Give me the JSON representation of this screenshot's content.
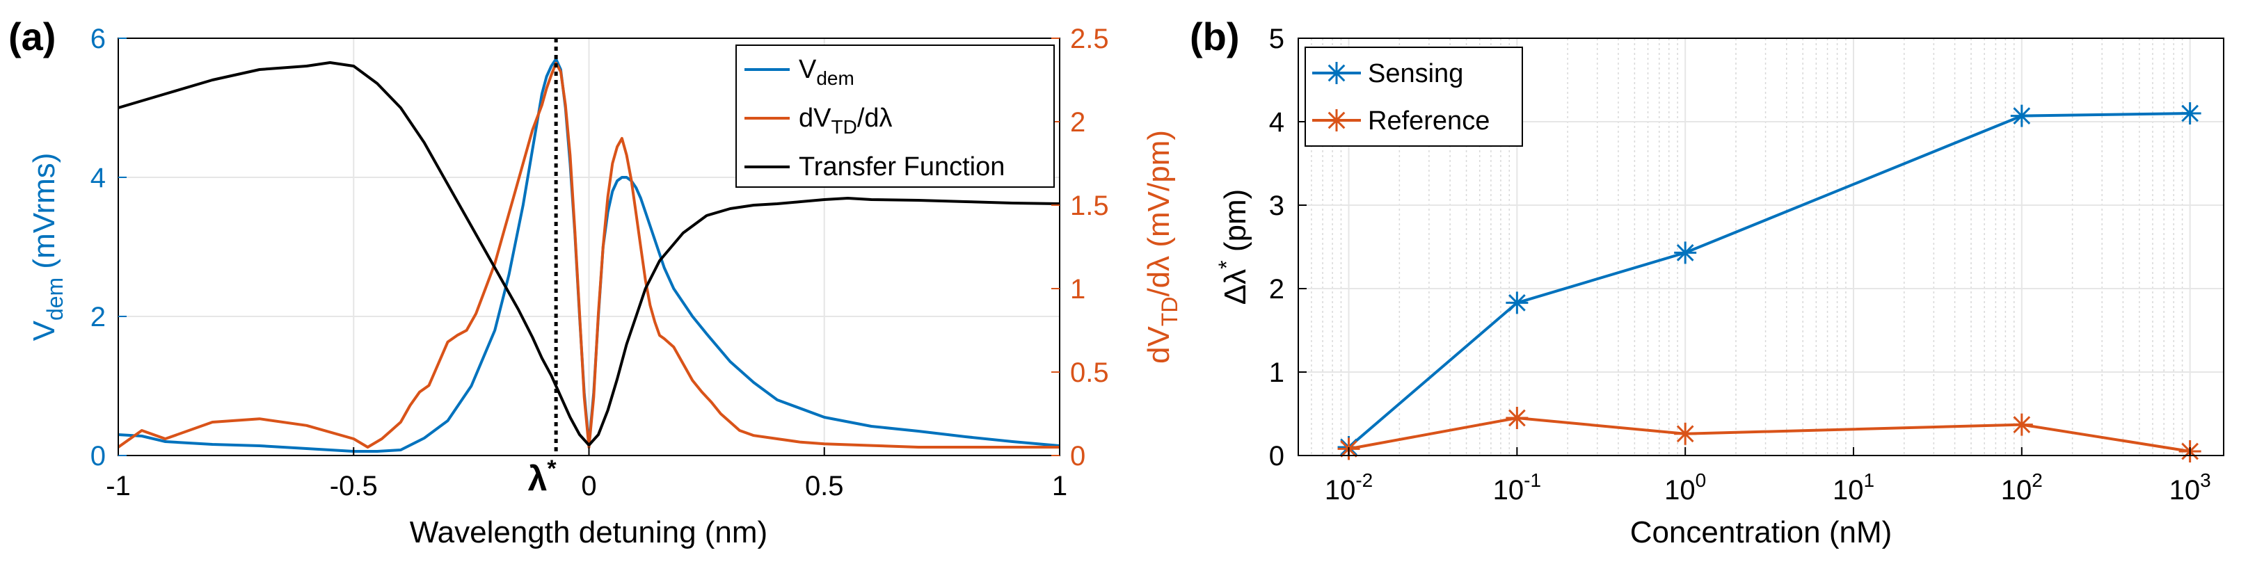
{
  "colors": {
    "blue": "#0072BD",
    "orange": "#D95319",
    "black": "#000000",
    "grid": "#E6E6E6",
    "minor_grid": "#D8D8D8"
  },
  "chart_data": [
    {
      "panel_label": "(a)",
      "type": "line",
      "xlabel": "Wavelength detuning (nm)",
      "xlim": [
        -1,
        1
      ],
      "x_ticks": [
        -1,
        -0.5,
        0,
        0.5,
        1
      ],
      "x_tick_labels": [
        "-1",
        "-0.5",
        "0",
        "0.5",
        "1"
      ],
      "ylabel_left": {
        "main": "V",
        "sub": "dem",
        "rest": " (mVrms)"
      },
      "ylim_left": [
        0,
        6
      ],
      "y_left_ticks": [
        0,
        2,
        4,
        6
      ],
      "ylabel_right": {
        "p1": "dV",
        "sub": "TD",
        "p2": "/dλ (mV/pm)"
      },
      "ylim_right": [
        0,
        2.5
      ],
      "y_right_ticks": [
        0,
        0.5,
        1,
        1.5,
        2,
        2.5
      ],
      "y_right_tick_labels": [
        "0",
        "0.5",
        "1",
        "1.5",
        "2",
        "2.5"
      ],
      "marker": {
        "x": -0.07,
        "label": "λ",
        "sup": "*"
      },
      "legend_position": "top-right",
      "legend": [
        {
          "main": "V",
          "sub": "dem",
          "rest": ""
        },
        {
          "main": "dV",
          "sub": "TD",
          "rest": "/dλ"
        },
        {
          "main": "Transfer Function",
          "sub": "",
          "rest": ""
        }
      ],
      "series": [
        {
          "name": "Vdem",
          "axis": "left",
          "color": "blue",
          "x": [
            -1,
            -0.95,
            -0.9,
            -0.8,
            -0.7,
            -0.6,
            -0.5,
            -0.45,
            -0.4,
            -0.35,
            -0.3,
            -0.25,
            -0.2,
            -0.17,
            -0.14,
            -0.12,
            -0.1,
            -0.09,
            -0.08,
            -0.07,
            -0.06,
            -0.05,
            -0.04,
            -0.03,
            -0.02,
            -0.01,
            0,
            0.01,
            0.02,
            0.03,
            0.04,
            0.05,
            0.06,
            0.07,
            0.08,
            0.09,
            0.1,
            0.11,
            0.12,
            0.14,
            0.16,
            0.18,
            0.2,
            0.22,
            0.25,
            0.3,
            0.35,
            0.4,
            0.5,
            0.6,
            0.7,
            0.8,
            0.9,
            1
          ],
          "values": [
            0.3,
            0.28,
            0.2,
            0.16,
            0.14,
            0.1,
            0.06,
            0.06,
            0.08,
            0.25,
            0.5,
            1.0,
            1.8,
            2.6,
            3.6,
            4.4,
            5.2,
            5.45,
            5.6,
            5.7,
            5.55,
            5.0,
            4.2,
            3.2,
            2.0,
            0.9,
            0.15,
            0.9,
            2.0,
            3.0,
            3.5,
            3.8,
            3.95,
            4.0,
            4.0,
            3.95,
            3.85,
            3.7,
            3.5,
            3.1,
            2.7,
            2.4,
            2.2,
            2.0,
            1.75,
            1.35,
            1.05,
            0.8,
            0.55,
            0.42,
            0.35,
            0.27,
            0.2,
            0.14
          ]
        },
        {
          "name": "dVTD/dλ",
          "axis": "right",
          "color": "orange",
          "x": [
            -1,
            -0.95,
            -0.9,
            -0.8,
            -0.7,
            -0.6,
            -0.5,
            -0.47,
            -0.44,
            -0.42,
            -0.4,
            -0.38,
            -0.36,
            -0.34,
            -0.32,
            -0.3,
            -0.28,
            -0.26,
            -0.24,
            -0.22,
            -0.2,
            -0.18,
            -0.16,
            -0.14,
            -0.12,
            -0.1,
            -0.09,
            -0.08,
            -0.07,
            -0.06,
            -0.05,
            -0.04,
            -0.03,
            -0.02,
            -0.01,
            0,
            0.01,
            0.02,
            0.03,
            0.04,
            0.05,
            0.06,
            0.07,
            0.08,
            0.09,
            0.1,
            0.11,
            0.12,
            0.13,
            0.14,
            0.15,
            0.16,
            0.18,
            0.2,
            0.22,
            0.24,
            0.26,
            0.28,
            0.3,
            0.32,
            0.35,
            0.4,
            0.45,
            0.5,
            0.6,
            0.7,
            0.8,
            0.9,
            1
          ],
          "values": [
            0.05,
            0.15,
            0.1,
            0.2,
            0.22,
            0.18,
            0.1,
            0.05,
            0.1,
            0.15,
            0.2,
            0.3,
            0.38,
            0.42,
            0.55,
            0.68,
            0.72,
            0.75,
            0.85,
            1.0,
            1.15,
            1.35,
            1.55,
            1.75,
            1.95,
            2.1,
            2.2,
            2.28,
            2.35,
            2.3,
            2.1,
            1.8,
            1.35,
            0.85,
            0.35,
            0.05,
            0.35,
            0.85,
            1.25,
            1.55,
            1.75,
            1.85,
            1.9,
            1.8,
            1.65,
            1.45,
            1.25,
            1.05,
            0.9,
            0.8,
            0.72,
            0.7,
            0.65,
            0.55,
            0.45,
            0.38,
            0.32,
            0.25,
            0.2,
            0.15,
            0.12,
            0.1,
            0.08,
            0.07,
            0.06,
            0.05,
            0.05,
            0.05,
            0.05
          ]
        },
        {
          "name": "Transfer Function",
          "axis": "left",
          "color": "black",
          "x": [
            -1,
            -0.9,
            -0.8,
            -0.7,
            -0.6,
            -0.55,
            -0.5,
            -0.45,
            -0.4,
            -0.35,
            -0.3,
            -0.25,
            -0.2,
            -0.15,
            -0.12,
            -0.1,
            -0.08,
            -0.06,
            -0.04,
            -0.02,
            0,
            0.02,
            0.04,
            0.06,
            0.08,
            0.1,
            0.12,
            0.15,
            0.2,
            0.25,
            0.3,
            0.35,
            0.4,
            0.45,
            0.5,
            0.55,
            0.6,
            0.7,
            0.8,
            0.9,
            1
          ],
          "values": [
            5.0,
            5.2,
            5.4,
            5.55,
            5.6,
            5.65,
            5.6,
            5.35,
            5.0,
            4.5,
            3.9,
            3.3,
            2.7,
            2.1,
            1.7,
            1.4,
            1.15,
            0.85,
            0.55,
            0.3,
            0.15,
            0.3,
            0.65,
            1.1,
            1.6,
            2.0,
            2.4,
            2.8,
            3.2,
            3.45,
            3.55,
            3.6,
            3.62,
            3.65,
            3.68,
            3.7,
            3.68,
            3.67,
            3.65,
            3.63,
            3.62
          ]
        }
      ]
    },
    {
      "panel_label": "(b)",
      "type": "line",
      "xlabel": "Concentration (nM)",
      "x_scale": "log",
      "xlim_exponent": [
        -2.3,
        3.2
      ],
      "x_ticks_exponent": [
        -2,
        -1,
        0,
        1,
        2,
        3
      ],
      "x_tick_base": "10",
      "x_tick_exponent_labels": [
        "-2",
        "-1",
        "0",
        "1",
        "2",
        "3"
      ],
      "ylabel": {
        "main": "Δλ",
        "sup": "*",
        "rest": " (pm)"
      },
      "ylim": [
        0,
        5
      ],
      "y_ticks": [
        0,
        1,
        2,
        3,
        4,
        5
      ],
      "legend_position": "top-left",
      "legend": [
        "Sensing",
        "Reference"
      ],
      "series": [
        {
          "name": "Sensing",
          "color": "blue",
          "x": [
            0.01,
            0.1,
            1,
            100,
            1000
          ],
          "values": [
            0.1,
            1.83,
            2.43,
            4.07,
            4.1
          ]
        },
        {
          "name": "Reference",
          "color": "orange",
          "x": [
            0.01,
            0.1,
            1,
            100,
            1000
          ],
          "values": [
            0.08,
            0.45,
            0.26,
            0.37,
            0.05
          ]
        }
      ]
    }
  ]
}
